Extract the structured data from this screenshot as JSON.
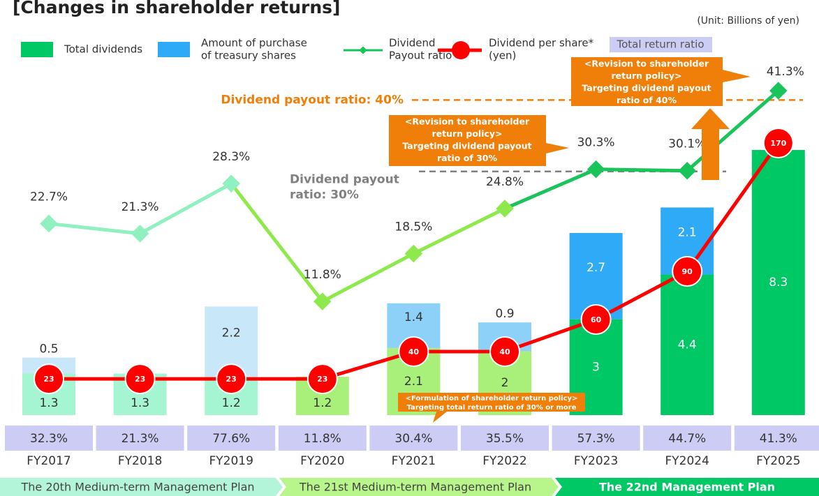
{
  "chart_data": {
    "type": "combo",
    "title": "[Changes in shareholder returns]",
    "unit": "(Unit: Billions of yen)",
    "categories": [
      "FY2017",
      "FY2018",
      "FY2019",
      "FY2020",
      "FY2021",
      "FY2022",
      "FY2023",
      "FY2024",
      "FY2025"
    ],
    "series": [
      {
        "name": [
          "Total dividends"
        ],
        "color": "#00c864",
        "colors": [
          "#a6f5d2",
          "#a6f5d2",
          "#a6f5d2",
          "#a8f07a",
          "#a8f07a",
          "#a8f07a",
          "#00c864",
          "#00c864",
          "#00c864"
        ],
        "values": [
          1.3,
          1.3,
          1.2,
          1.2,
          2.1,
          2.0,
          3.0,
          4.4,
          8.3
        ]
      },
      {
        "name": [
          "Amount of purchase",
          "of treasury shares"
        ],
        "color": "#2eaaf7",
        "colors": [
          "#c8e8fa",
          "#c8e8fa",
          "#c8e8fa",
          "#8dd0f8",
          "#8dd0f8",
          "#8dd0f8",
          "#2eaaf7",
          "#2eaaf7",
          "#2eaaf7"
        ],
        "values": [
          0.5,
          null,
          2.2,
          null,
          1.4,
          0.9,
          2.7,
          2.1,
          null
        ]
      },
      {
        "name": [
          "Dividend",
          "Payout ratio"
        ],
        "color": "#19c45a",
        "colors": [
          "#8ff0c0",
          "#8ff0c0",
          "#8ff0c0",
          "#8eea4c",
          "#8eea4c",
          "#8eea4c",
          "#19c45a",
          "#19c45a",
          "#19c45a"
        ],
        "values": [
          22.7,
          21.3,
          28.3,
          11.8,
          18.5,
          24.8,
          30.3,
          30.1,
          41.3
        ],
        "value_labels": [
          "22.7%",
          "21.3%",
          "28.3%",
          "11.8%",
          "18.5%",
          "24.8%",
          "30.3%",
          "30.1%",
          "41.3%"
        ]
      },
      {
        "name": [
          "Dividend per share*",
          "(yen)"
        ],
        "color": "#ff0000",
        "values": [
          23,
          23,
          23,
          23,
          40,
          40,
          60,
          90,
          170
        ]
      },
      {
        "name": [
          "Total return ratio"
        ],
        "color": "#ccccf5",
        "values": [
          32.3,
          21.3,
          77.6,
          11.8,
          30.4,
          35.5,
          57.3,
          44.7,
          41.3
        ],
        "value_labels": [
          "32.3%",
          "21.3%",
          "77.6%",
          "11.8%",
          "30.4%",
          "35.5%",
          "57.3%",
          "44.7%",
          "41.3%"
        ]
      }
    ],
    "reference_lines": [
      {
        "value": 40,
        "label": [
          "Dividend payout ratio: 40%"
        ],
        "color": "#f07f09"
      },
      {
        "value": 30,
        "label": [
          "Dividend payout",
          "ratio: 30%"
        ],
        "color": "#808080"
      }
    ],
    "annotations": [
      {
        "lines": [
          "<Revision to shareholder",
          "return policy>",
          "Targeting  dividend payout",
          "ratio of 40%"
        ]
      },
      {
        "lines": [
          "<Revision to shareholder",
          "return policy>",
          "Targeting dividend payout",
          "ratio of 30%"
        ]
      },
      {
        "lines": [
          "<Formulation of shareholder return policy>",
          "Targeting total return ratio of 30% or more"
        ]
      }
    ],
    "plans": [
      {
        "label": "The 20th Medium-term Management Plan",
        "color": "#b3f5d8"
      },
      {
        "label": "The 21st Medium-term Management Plan",
        "color": "#b8f58a"
      },
      {
        "label": "The 22nd Management Plan",
        "color": "#00c864"
      }
    ]
  }
}
